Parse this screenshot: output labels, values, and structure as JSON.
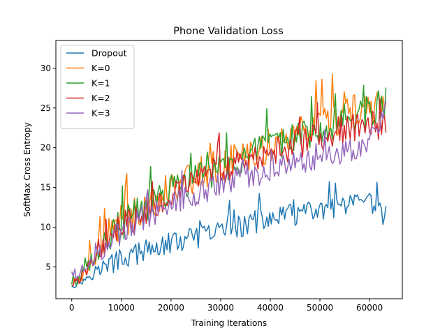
{
  "chart_data": {
    "type": "line",
    "title": "Phone Validation Loss",
    "xlabel": "Training Iterations",
    "ylabel": "SoftMax Cross Entropy",
    "xlim": [
      -3200,
      66600
    ],
    "ylim": [
      1.0,
      33.5
    ],
    "xticks": [
      0,
      10000,
      20000,
      30000,
      40000,
      50000,
      60000
    ],
    "xtick_labels": [
      "0",
      "10000",
      "20000",
      "30000",
      "40000",
      "50000",
      "60000"
    ],
    "yticks": [
      5,
      10,
      15,
      20,
      25,
      30
    ],
    "ytick_labels": [
      "5",
      "10",
      "15",
      "20",
      "25",
      "30"
    ],
    "grid": false,
    "legend_position": "top-left",
    "noise_note": "series are dense noisy curves; values below are the trend anchors plus the amplitude of fluctuation",
    "series": [
      {
        "name": "Dropout",
        "color": "#1f77b4",
        "x": [
          0,
          2000,
          5000,
          8000,
          10000,
          15000,
          20000,
          25000,
          30000,
          35000,
          40000,
          45000,
          50000,
          55000,
          60000,
          63500
        ],
        "y": [
          2.6,
          3.2,
          4.6,
          5.4,
          6.0,
          7.0,
          8.0,
          8.6,
          9.6,
          10.3,
          11.0,
          11.6,
          12.0,
          12.6,
          13.0,
          11.3
        ],
        "noise": 1.4
      },
      {
        "name": "K=0",
        "color": "#ff7f0e",
        "x": [
          0,
          2000,
          5000,
          8000,
          10000,
          15000,
          20000,
          25000,
          30000,
          35000,
          40000,
          45000,
          50000,
          55000,
          60000,
          63500
        ],
        "y": [
          2.9,
          4.0,
          7.0,
          9.6,
          10.6,
          13.0,
          15.2,
          16.6,
          17.8,
          19.0,
          20.4,
          21.6,
          22.8,
          24.0,
          25.0,
          26.0
        ],
        "noise": 2.3
      },
      {
        "name": "K=1",
        "color": "#2ca02c",
        "x": [
          0,
          2000,
          5000,
          8000,
          10000,
          15000,
          20000,
          25000,
          30000,
          35000,
          40000,
          45000,
          50000,
          55000,
          60000,
          63500
        ],
        "y": [
          2.8,
          3.8,
          6.7,
          9.2,
          10.3,
          12.6,
          14.7,
          16.2,
          17.4,
          18.7,
          20.0,
          21.2,
          22.4,
          23.6,
          24.6,
          25.8
        ],
        "noise": 2.0
      },
      {
        "name": "K=2",
        "color": "#d62728",
        "x": [
          0,
          2000,
          5000,
          8000,
          10000,
          15000,
          20000,
          25000,
          30000,
          35000,
          40000,
          45000,
          50000,
          55000,
          60000,
          63500
        ],
        "y": [
          2.7,
          3.7,
          6.5,
          9.0,
          10.0,
          12.3,
          14.3,
          15.8,
          17.0,
          18.2,
          19.4,
          20.4,
          21.4,
          22.4,
          23.0,
          22.0
        ],
        "noise": 1.9
      },
      {
        "name": "K=3",
        "color": "#9467bd",
        "x": [
          0,
          2000,
          5000,
          8000,
          10000,
          15000,
          20000,
          25000,
          30000,
          35000,
          40000,
          45000,
          50000,
          55000,
          60000,
          63500
        ],
        "y": [
          4.4,
          3.6,
          6.2,
          8.4,
          9.4,
          11.4,
          13.1,
          14.3,
          15.4,
          16.4,
          17.3,
          18.2,
          19.0,
          19.8,
          20.6,
          24.5
        ],
        "noise": 1.7
      }
    ]
  }
}
